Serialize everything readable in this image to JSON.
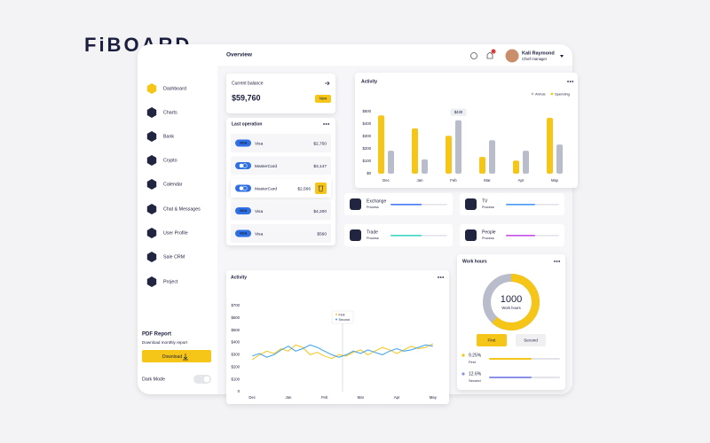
{
  "logo": "FiBOARD",
  "header": {
    "title": "Overview",
    "user_name": "Kali Raymond",
    "user_role": "Chief manager",
    "notifications": "1"
  },
  "sidebar": {
    "menu": [
      "Dashboard",
      "Charts",
      "Bank",
      "Crypto",
      "Calendar",
      "Chat & Messages",
      "User Profile",
      "Sale CRM",
      "Project"
    ],
    "pdf_title": "PDF Report",
    "pdf_text": "Download monthly report",
    "download": "Download",
    "dark_mode": "Dark Mode"
  },
  "balance": {
    "label": "Current balance",
    "amount": "$59,760",
    "badge": "New"
  },
  "operations": {
    "title": "Last operation",
    "visa_badge": "VISA",
    "rows": [
      {
        "kind": "visa",
        "name": "Visa",
        "amount": "$2,750"
      },
      {
        "kind": "mastercard",
        "name": "MasterCard",
        "amount": "$3,147"
      },
      {
        "kind": "mastercard",
        "name": "MasterCard",
        "amount": "$2,566"
      },
      {
        "kind": "visa",
        "name": "Visa",
        "amount": "$4,200"
      },
      {
        "kind": "visa",
        "name": "Visa",
        "amount": "$560"
      }
    ]
  },
  "stats": [
    {
      "title": "Exchange",
      "status": "Process",
      "color": "#4a7bf7"
    },
    {
      "title": "TV",
      "status": "Process",
      "color": "#4a9bf7"
    },
    {
      "title": "Trade",
      "status": "Process",
      "color": "#3fd8c4"
    },
    {
      "title": "People",
      "status": "Process",
      "color": "#c455e8"
    }
  ],
  "work_hours": {
    "title": "Work hours",
    "total": "1000",
    "total_label": "Work hours",
    "buttons": [
      "First",
      "Second"
    ],
    "items": [
      {
        "value": "9.25%",
        "name": "First",
        "color": "#f5c518"
      },
      {
        "value": "12.6%",
        "name": "Second",
        "color": "#8a8fe8"
      }
    ]
  },
  "chart_data": [
    {
      "type": "bar",
      "title": "Activity",
      "categories": [
        "Dec",
        "Jan",
        "Feb",
        "Mar",
        "Apr",
        "May"
      ],
      "series": [
        {
          "name": "Arrival",
          "color": "#b9bccb",
          "values": [
            185,
            115,
            430,
            270,
            185,
            235
          ]
        },
        {
          "name": "Spending",
          "color": "#f5c518",
          "values": [
            470,
            365,
            305,
            135,
            105,
            450
          ]
        }
      ],
      "tooltip": "$430",
      "ylim": [
        0,
        500
      ],
      "yticks": [
        {
          "value": 0,
          "label": "$0"
        },
        {
          "value": 100,
          "label": "$100"
        },
        {
          "value": 200,
          "label": "$200"
        },
        {
          "value": 300,
          "label": "$300"
        },
        {
          "value": 400,
          "label": "$400"
        },
        {
          "value": 500,
          "label": "$500"
        }
      ]
    },
    {
      "type": "line",
      "title": "Activity",
      "x": [
        0,
        0.2,
        0.4,
        0.6,
        0.8,
        1,
        1.2,
        1.4,
        1.6,
        1.8,
        2,
        2.2,
        2.4,
        2.6,
        2.8,
        3,
        3.2,
        3.4,
        3.6,
        3.8,
        4,
        4.2,
        4.4,
        4.6,
        4.8,
        5
      ],
      "series": [
        {
          "name": "First",
          "color": "#f5c518",
          "values": [
            260,
            300,
            330,
            310,
            350,
            330,
            380,
            360,
            300,
            320,
            290,
            270,
            300,
            290,
            320,
            340,
            300,
            330,
            360,
            340,
            310,
            340,
            370,
            350,
            360,
            390
          ]
        },
        {
          "name": "Second",
          "color": "#3aa0f0",
          "values": [
            290,
            310,
            280,
            300,
            340,
            370,
            330,
            350,
            380,
            360,
            330,
            300,
            280,
            300,
            330,
            310,
            340,
            320,
            300,
            330,
            350,
            330,
            340,
            360,
            380,
            370
          ]
        }
      ],
      "xlim": [
        -0.3,
        5.3
      ],
      "xticks": [
        {
          "value": 0,
          "label": "Dec"
        },
        {
          "value": 1,
          "label": "Jan"
        },
        {
          "value": 2,
          "label": "Feb"
        },
        {
          "value": 3,
          "label": "Mar"
        },
        {
          "value": 4,
          "label": "Apr"
        },
        {
          "value": 5,
          "label": "May"
        }
      ],
      "ylim": [
        0,
        700
      ],
      "yticks": [
        0,
        {
          "value": 100,
          "label": "$100"
        },
        {
          "value": 200,
          "label": "$200"
        },
        {
          "value": 300,
          "label": "$300"
        },
        {
          "value": 400,
          "label": "$400"
        },
        {
          "value": 500,
          "label": "$500"
        },
        {
          "value": 600,
          "label": "$600"
        },
        {
          "value": 700,
          "label": "$700"
        }
      ]
    }
  ]
}
